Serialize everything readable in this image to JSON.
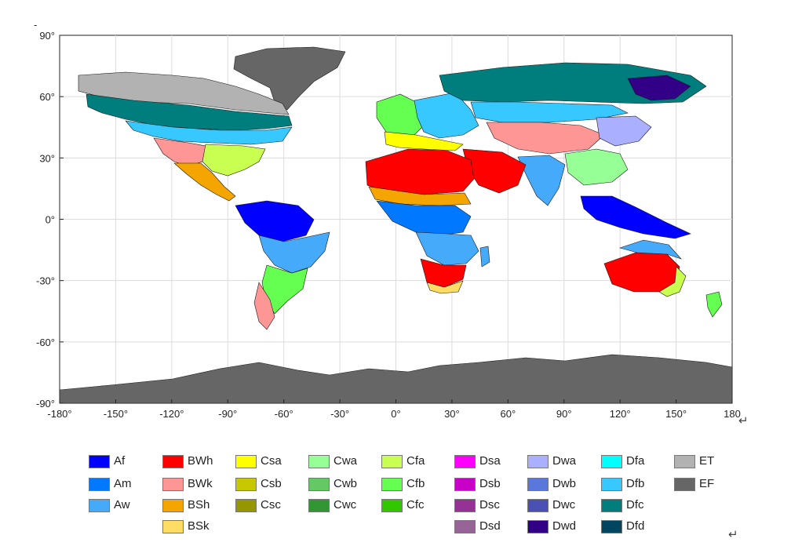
{
  "map": {
    "x_ticks": [
      "-180°",
      "-150°",
      "-120°",
      "-90°",
      "-60°",
      "-30°",
      "0°",
      "30°",
      "60°",
      "90°",
      "120°",
      "150°",
      "180"
    ],
    "y_ticks": [
      "90°",
      "60°",
      "30°",
      "0°",
      "-30°",
      "-60°",
      "-90°"
    ],
    "ocean_color": "#ffffff",
    "grid": true
  },
  "colors": {
    "Af": "#0000ff",
    "Am": "#0078ff",
    "Aw": "#46aafa",
    "BWh": "#ff0000",
    "BWk": "#ff9696",
    "BSh": "#f5a500",
    "BSk": "#ffdc64",
    "Csa": "#ffff00",
    "Csb": "#c8c800",
    "Csc": "#969600",
    "Cwa": "#96ff96",
    "Cwb": "#64c864",
    "Cwc": "#329632",
    "Cfa": "#c8ff50",
    "Cfb": "#64ff50",
    "Cfc": "#32c800",
    "Dsa": "#ff00ff",
    "Dsb": "#c800c8",
    "Dsc": "#963296",
    "Dsd": "#966496",
    "Dwa": "#aaafff",
    "Dwb": "#5a78dc",
    "Dwc": "#4b50b4",
    "Dwd": "#320087",
    "Dfa": "#00ffff",
    "Dfb": "#37c8ff",
    "Dfc": "#007d7d",
    "Dfd": "#00465f",
    "ET": "#b2b2b2",
    "EF": "#666666"
  },
  "legend": {
    "columns": [
      [
        "Af",
        "Am",
        "Aw"
      ],
      [
        "BWh",
        "BWk",
        "BSh",
        "BSk"
      ],
      [
        "Csa",
        "Csb",
        "Csc"
      ],
      [
        "Cwa",
        "Cwb",
        "Cwc"
      ],
      [
        "Cfa",
        "Cfb",
        "Cfc"
      ],
      [
        "Dsa",
        "Dsb",
        "Dsc",
        "Dsd"
      ],
      [
        "Dwa",
        "Dwb",
        "Dwc",
        "Dwd"
      ],
      [
        "Dfa",
        "Dfb",
        "Dfc",
        "Dfd"
      ],
      [
        "ET",
        "EF"
      ]
    ]
  },
  "marks": {
    "return_1": "↵",
    "return_2": "↵",
    "cursor": "-"
  }
}
